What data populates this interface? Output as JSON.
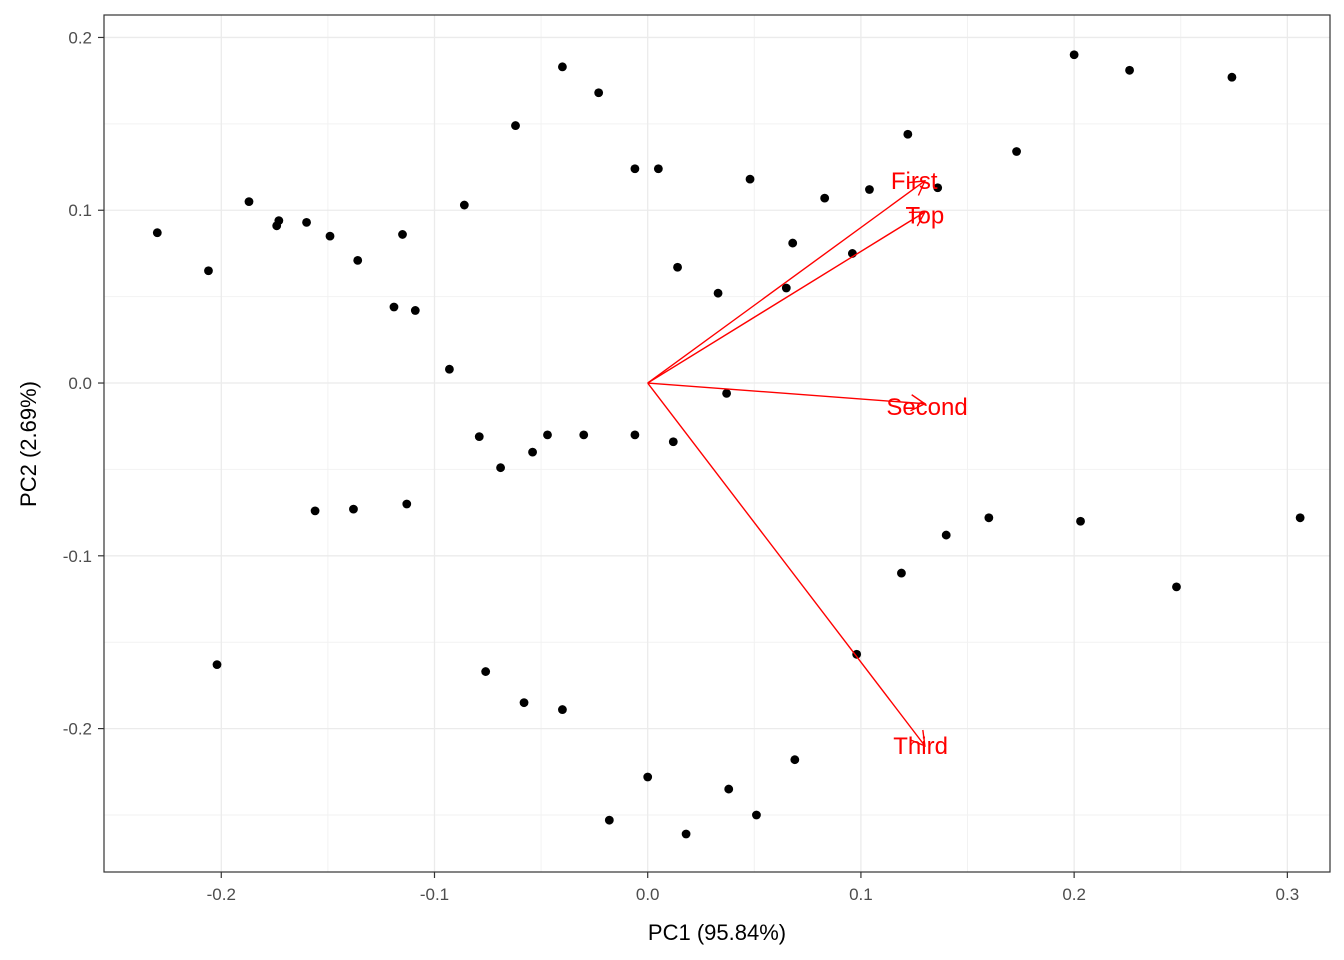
{
  "chart_data": {
    "type": "scatter",
    "subtype": "pca-biplot",
    "xlabel": "PC1 (95.84%)",
    "ylabel": "PC2 (2.69%)",
    "xlim": [
      -0.255,
      0.32
    ],
    "ylim": [
      -0.283,
      0.213
    ],
    "x_ticks": [
      -0.2,
      -0.1,
      0.0,
      0.1,
      0.2,
      0.3
    ],
    "x_tick_labels": [
      "-0.2",
      "-0.1",
      "0.0",
      "0.1",
      "0.2",
      "0.3"
    ],
    "y_ticks": [
      -0.2,
      -0.1,
      0.0,
      0.1,
      0.2
    ],
    "y_tick_labels": [
      "-0.2",
      "-0.1",
      "0.0",
      "0.1",
      "0.2"
    ],
    "grid": true,
    "point_color": "#000000",
    "loading_color": "#ff0000",
    "points": [
      {
        "x": -0.23,
        "y": 0.087
      },
      {
        "x": -0.206,
        "y": 0.065
      },
      {
        "x": -0.202,
        "y": -0.163
      },
      {
        "x": -0.187,
        "y": 0.105
      },
      {
        "x": -0.174,
        "y": 0.091
      },
      {
        "x": -0.173,
        "y": 0.094
      },
      {
        "x": -0.16,
        "y": 0.093
      },
      {
        "x": -0.156,
        "y": -0.074
      },
      {
        "x": -0.149,
        "y": 0.085
      },
      {
        "x": -0.138,
        "y": -0.073
      },
      {
        "x": -0.136,
        "y": 0.071
      },
      {
        "x": -0.119,
        "y": 0.044
      },
      {
        "x": -0.115,
        "y": 0.086
      },
      {
        "x": -0.113,
        "y": -0.07
      },
      {
        "x": -0.109,
        "y": 0.042
      },
      {
        "x": -0.093,
        "y": 0.008
      },
      {
        "x": -0.086,
        "y": 0.103
      },
      {
        "x": -0.079,
        "y": -0.031
      },
      {
        "x": -0.076,
        "y": -0.167
      },
      {
        "x": -0.069,
        "y": -0.049
      },
      {
        "x": -0.062,
        "y": 0.149
      },
      {
        "x": -0.058,
        "y": -0.185
      },
      {
        "x": -0.054,
        "y": -0.04
      },
      {
        "x": -0.047,
        "y": -0.03
      },
      {
        "x": -0.04,
        "y": 0.183
      },
      {
        "x": -0.04,
        "y": -0.189
      },
      {
        "x": -0.03,
        "y": -0.03
      },
      {
        "x": -0.023,
        "y": 0.168
      },
      {
        "x": -0.018,
        "y": -0.253
      },
      {
        "x": -0.006,
        "y": 0.124
      },
      {
        "x": -0.006,
        "y": -0.03
      },
      {
        "x": 0.0,
        "y": -0.228
      },
      {
        "x": 0.005,
        "y": 0.124
      },
      {
        "x": 0.012,
        "y": -0.034
      },
      {
        "x": 0.014,
        "y": 0.067
      },
      {
        "x": 0.018,
        "y": -0.261
      },
      {
        "x": 0.033,
        "y": 0.052
      },
      {
        "x": 0.037,
        "y": -0.006
      },
      {
        "x": 0.038,
        "y": -0.235
      },
      {
        "x": 0.048,
        "y": 0.118
      },
      {
        "x": 0.051,
        "y": -0.25
      },
      {
        "x": 0.065,
        "y": 0.055
      },
      {
        "x": 0.068,
        "y": 0.081
      },
      {
        "x": 0.069,
        "y": -0.218
      },
      {
        "x": 0.083,
        "y": 0.107
      },
      {
        "x": 0.096,
        "y": 0.075
      },
      {
        "x": 0.098,
        "y": -0.157
      },
      {
        "x": 0.104,
        "y": 0.112
      },
      {
        "x": 0.119,
        "y": -0.11
      },
      {
        "x": 0.122,
        "y": 0.144
      },
      {
        "x": 0.136,
        "y": 0.113
      },
      {
        "x": 0.14,
        "y": -0.088
      },
      {
        "x": 0.16,
        "y": -0.078
      },
      {
        "x": 0.173,
        "y": 0.134
      },
      {
        "x": 0.2,
        "y": 0.19
      },
      {
        "x": 0.203,
        "y": -0.08
      },
      {
        "x": 0.226,
        "y": 0.181
      },
      {
        "x": 0.248,
        "y": -0.118
      },
      {
        "x": 0.274,
        "y": 0.177
      },
      {
        "x": 0.306,
        "y": -0.078
      }
    ],
    "loadings": [
      {
        "name": "First",
        "x": 0.13,
        "y": 0.117,
        "label_x": 0.125,
        "label_y": 0.117
      },
      {
        "name": "Top",
        "x": 0.13,
        "y": 0.099,
        "label_x": 0.13,
        "label_y": 0.097
      },
      {
        "name": "Second",
        "x": 0.13,
        "y": -0.012,
        "label_x": 0.131,
        "label_y": -0.014
      },
      {
        "name": "Third",
        "x": 0.13,
        "y": -0.21,
        "label_x": 0.128,
        "label_y": -0.21
      }
    ]
  }
}
